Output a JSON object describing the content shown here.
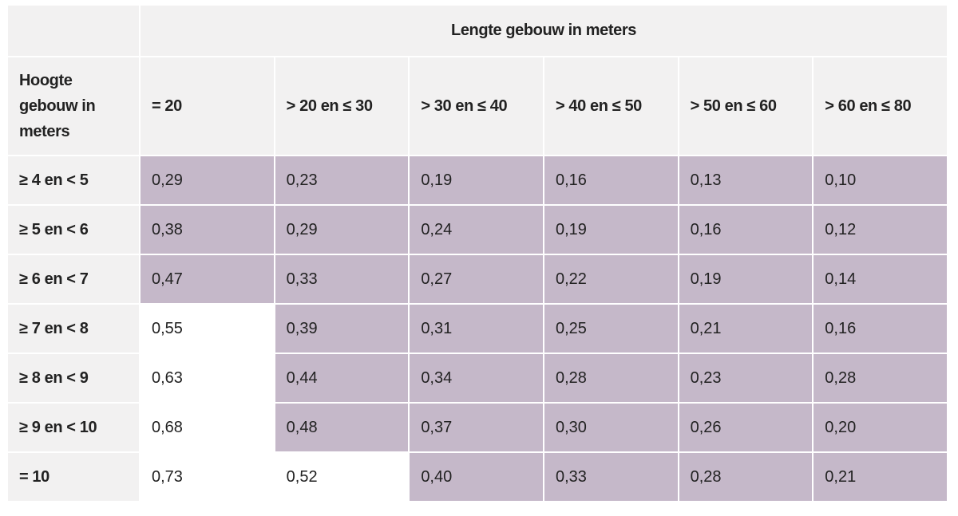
{
  "table": {
    "column_group_header": "Lengte gebouw in meters",
    "row_group_header": "Hoogte gebouw in meters",
    "column_headers": [
      "= 20",
      "> 20 en ≤ 30",
      "> 30 en ≤ 40",
      "> 40 en ≤ 50",
      "> 50 en ≤ 60",
      "> 60 en ≤ 80"
    ],
    "rows": [
      {
        "label": "≥ 4 en < 5",
        "values": [
          "0,29",
          "0,23",
          "0,19",
          "0,16",
          "0,13",
          "0,10"
        ],
        "highlighted": [
          true,
          true,
          true,
          true,
          true,
          true
        ]
      },
      {
        "label": "≥ 5 en < 6",
        "values": [
          "0,38",
          "0,29",
          "0,24",
          "0,19",
          "0,16",
          "0,12"
        ],
        "highlighted": [
          true,
          true,
          true,
          true,
          true,
          true
        ]
      },
      {
        "label": "≥ 6 en < 7",
        "values": [
          "0,47",
          "0,33",
          "0,27",
          "0,22",
          "0,19",
          "0,14"
        ],
        "highlighted": [
          true,
          true,
          true,
          true,
          true,
          true
        ]
      },
      {
        "label": "≥ 7 en < 8",
        "values": [
          "0,55",
          "0,39",
          "0,31",
          "0,25",
          "0,21",
          "0,16"
        ],
        "highlighted": [
          false,
          true,
          true,
          true,
          true,
          true
        ]
      },
      {
        "label": "≥ 8 en < 9",
        "values": [
          "0,63",
          "0,44",
          "0,34",
          "0,28",
          "0,23",
          "0,28"
        ],
        "highlighted": [
          false,
          true,
          true,
          true,
          true,
          true
        ]
      },
      {
        "label": "≥ 9 en < 10",
        "values": [
          "0,68",
          "0,48",
          "0,37",
          "0,30",
          "0,26",
          "0,20"
        ],
        "highlighted": [
          false,
          true,
          true,
          true,
          true,
          true
        ]
      },
      {
        "label": "= 10",
        "values": [
          "0,73",
          "0,52",
          "0,40",
          "0,33",
          "0,28",
          "0,21"
        ],
        "highlighted": [
          false,
          false,
          true,
          true,
          true,
          true
        ]
      }
    ],
    "colors": {
      "highlight_cell": "#c5b8c9",
      "header_cell": "#f2f1f1",
      "text": "#222222",
      "plain_cell": "#ffffff"
    }
  }
}
